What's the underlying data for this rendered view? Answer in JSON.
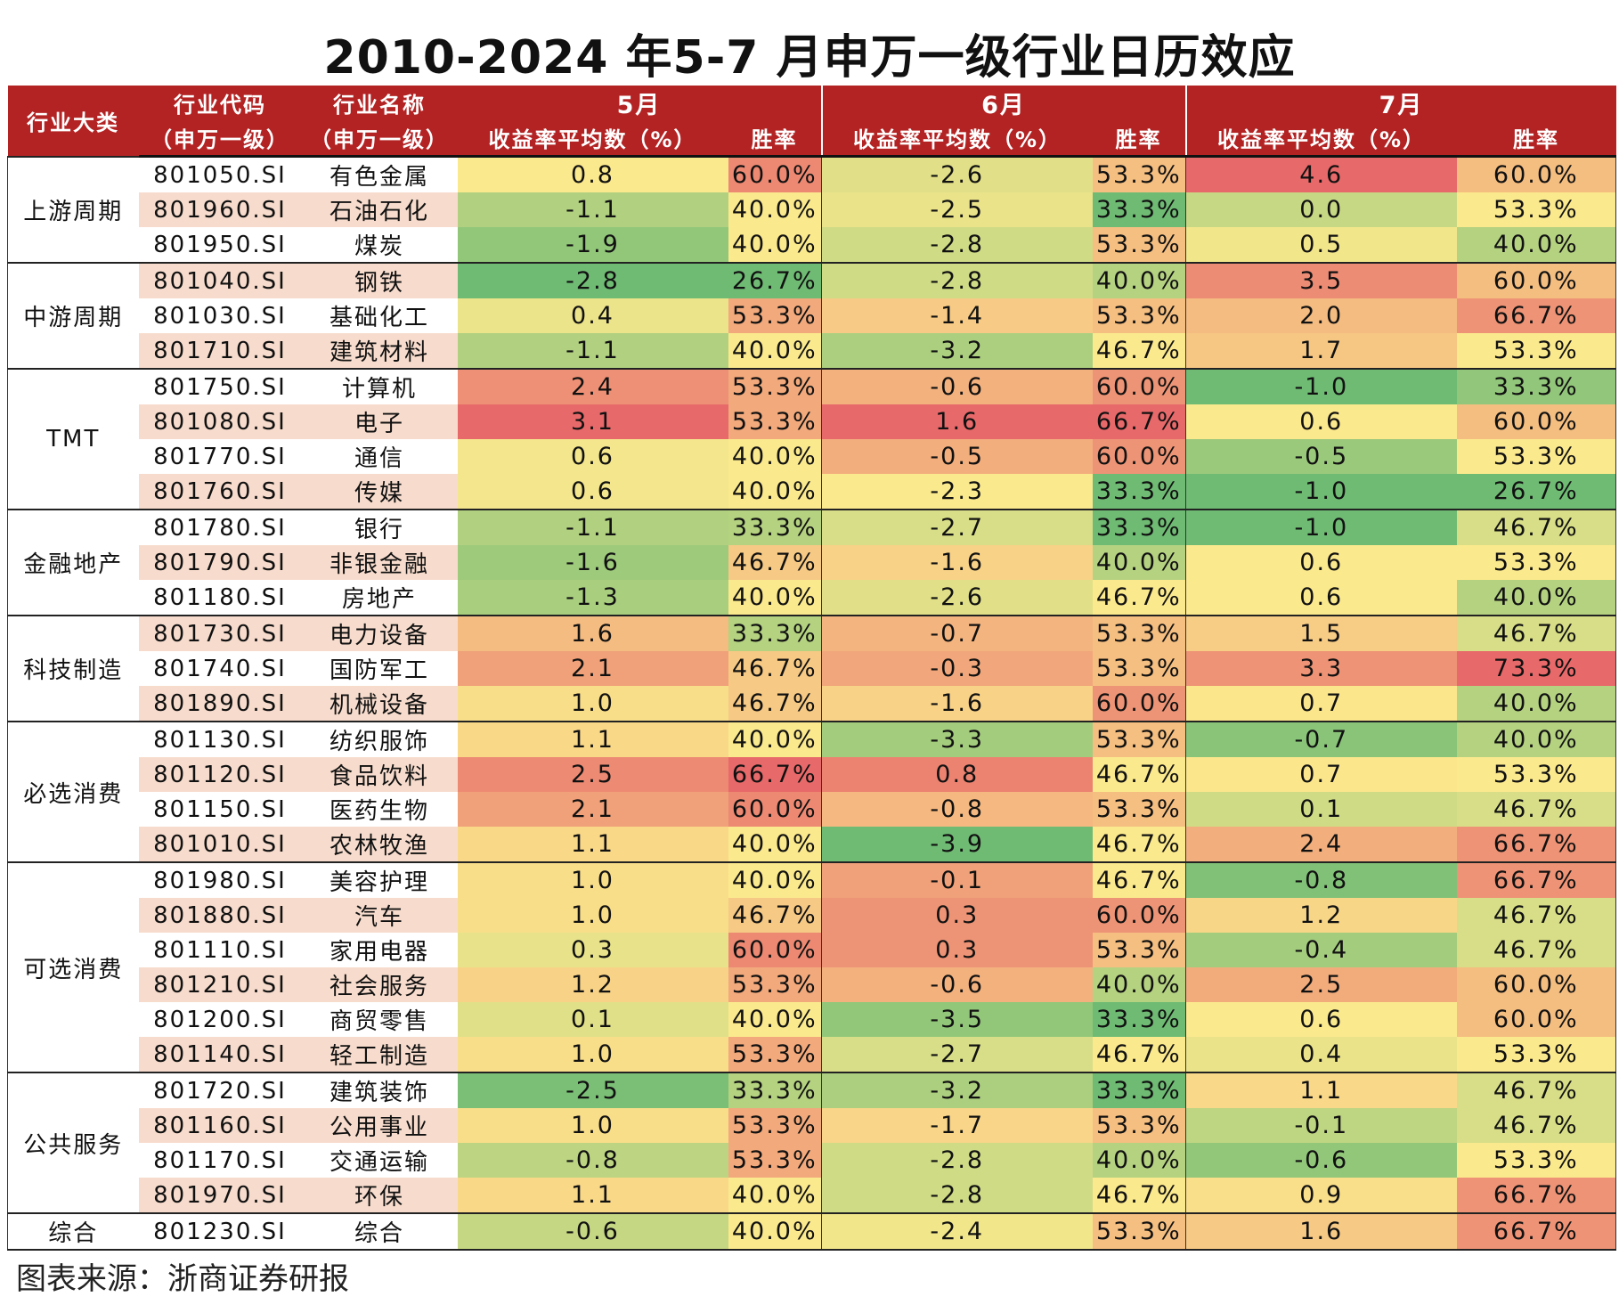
{
  "title": "2010-2024 年5-7 月申万一级行业日历效应",
  "source": "图表来源：浙商证券研报",
  "header": {
    "category": "行业大类",
    "code_l1": "行业代码",
    "code_l2": "（申万一级）",
    "name_l1": "行业名称",
    "name_l2": "（申万一级）",
    "months": [
      "5月",
      "6月",
      "7月"
    ],
    "return_label": "收益率平均数（%）",
    "winrate_label": "胜率"
  },
  "colors": {
    "header_bg": "#b32324",
    "alt_row_bg": "#f7dccd",
    "scale_low": "#6fbb74",
    "scale_mid": "#fbe98d",
    "scale_high": "#e8696a"
  },
  "chart_data": {
    "type": "table",
    "groups": [
      {
        "category": "上游周期",
        "rows": [
          {
            "code": "801050.SI",
            "name": "有色金属",
            "may_ret": "0.8",
            "may_win": "60.0%",
            "jun_ret": "-2.6",
            "jun_win": "53.3%",
            "jul_ret": "4.6",
            "jul_win": "60.0%"
          },
          {
            "code": "801960.SI",
            "name": "石油石化",
            "may_ret": "-1.1",
            "may_win": "40.0%",
            "jun_ret": "-2.5",
            "jun_win": "33.3%",
            "jul_ret": "0.0",
            "jul_win": "53.3%"
          },
          {
            "code": "801950.SI",
            "name": "煤炭",
            "may_ret": "-1.9",
            "may_win": "40.0%",
            "jun_ret": "-2.8",
            "jun_win": "53.3%",
            "jul_ret": "0.5",
            "jul_win": "40.0%"
          }
        ]
      },
      {
        "category": "中游周期",
        "rows": [
          {
            "code": "801040.SI",
            "name": "钢铁",
            "may_ret": "-2.8",
            "may_win": "26.7%",
            "jun_ret": "-2.8",
            "jun_win": "40.0%",
            "jul_ret": "3.5",
            "jul_win": "60.0%"
          },
          {
            "code": "801030.SI",
            "name": "基础化工",
            "may_ret": "0.4",
            "may_win": "53.3%",
            "jun_ret": "-1.4",
            "jun_win": "53.3%",
            "jul_ret": "2.0",
            "jul_win": "66.7%"
          },
          {
            "code": "801710.SI",
            "name": "建筑材料",
            "may_ret": "-1.1",
            "may_win": "40.0%",
            "jun_ret": "-3.2",
            "jun_win": "46.7%",
            "jul_ret": "1.7",
            "jul_win": "53.3%"
          }
        ]
      },
      {
        "category": "TMT",
        "rows": [
          {
            "code": "801750.SI",
            "name": "计算机",
            "may_ret": "2.4",
            "may_win": "53.3%",
            "jun_ret": "-0.6",
            "jun_win": "60.0%",
            "jul_ret": "-1.0",
            "jul_win": "33.3%"
          },
          {
            "code": "801080.SI",
            "name": "电子",
            "may_ret": "3.1",
            "may_win": "53.3%",
            "jun_ret": "1.6",
            "jun_win": "66.7%",
            "jul_ret": "0.6",
            "jul_win": "60.0%"
          },
          {
            "code": "801770.SI",
            "name": "通信",
            "may_ret": "0.6",
            "may_win": "40.0%",
            "jun_ret": "-0.5",
            "jun_win": "60.0%",
            "jul_ret": "-0.5",
            "jul_win": "53.3%"
          },
          {
            "code": "801760.SI",
            "name": "传媒",
            "may_ret": "0.6",
            "may_win": "40.0%",
            "jun_ret": "-2.3",
            "jun_win": "33.3%",
            "jul_ret": "-1.0",
            "jul_win": "26.7%"
          }
        ]
      },
      {
        "category": "金融地产",
        "rows": [
          {
            "code": "801780.SI",
            "name": "银行",
            "may_ret": "-1.1",
            "may_win": "33.3%",
            "jun_ret": "-2.7",
            "jun_win": "33.3%",
            "jul_ret": "-1.0",
            "jul_win": "46.7%"
          },
          {
            "code": "801790.SI",
            "name": "非银金融",
            "may_ret": "-1.6",
            "may_win": "46.7%",
            "jun_ret": "-1.6",
            "jun_win": "40.0%",
            "jul_ret": "0.6",
            "jul_win": "53.3%"
          },
          {
            "code": "801180.SI",
            "name": "房地产",
            "may_ret": "-1.3",
            "may_win": "40.0%",
            "jun_ret": "-2.6",
            "jun_win": "46.7%",
            "jul_ret": "0.6",
            "jul_win": "40.0%"
          }
        ]
      },
      {
        "category": "科技制造",
        "rows": [
          {
            "code": "801730.SI",
            "name": "电力设备",
            "may_ret": "1.6",
            "may_win": "33.3%",
            "jun_ret": "-0.7",
            "jun_win": "53.3%",
            "jul_ret": "1.5",
            "jul_win": "46.7%"
          },
          {
            "code": "801740.SI",
            "name": "国防军工",
            "may_ret": "2.1",
            "may_win": "46.7%",
            "jun_ret": "-0.3",
            "jun_win": "53.3%",
            "jul_ret": "3.3",
            "jul_win": "73.3%"
          },
          {
            "code": "801890.SI",
            "name": "机械设备",
            "may_ret": "1.0",
            "may_win": "46.7%",
            "jun_ret": "-1.6",
            "jun_win": "60.0%",
            "jul_ret": "0.7",
            "jul_win": "40.0%"
          }
        ]
      },
      {
        "category": "必选消费",
        "rows": [
          {
            "code": "801130.SI",
            "name": "纺织服饰",
            "may_ret": "1.1",
            "may_win": "40.0%",
            "jun_ret": "-3.3",
            "jun_win": "53.3%",
            "jul_ret": "-0.7",
            "jul_win": "40.0%"
          },
          {
            "code": "801120.SI",
            "name": "食品饮料",
            "may_ret": "2.5",
            "may_win": "66.7%",
            "jun_ret": "0.8",
            "jun_win": "46.7%",
            "jul_ret": "0.7",
            "jul_win": "53.3%"
          },
          {
            "code": "801150.SI",
            "name": "医药生物",
            "may_ret": "2.1",
            "may_win": "60.0%",
            "jun_ret": "-0.8",
            "jun_win": "53.3%",
            "jul_ret": "0.1",
            "jul_win": "46.7%"
          },
          {
            "code": "801010.SI",
            "name": "农林牧渔",
            "may_ret": "1.1",
            "may_win": "40.0%",
            "jun_ret": "-3.9",
            "jun_win": "46.7%",
            "jul_ret": "2.4",
            "jul_win": "66.7%"
          }
        ]
      },
      {
        "category": "可选消费",
        "rows": [
          {
            "code": "801980.SI",
            "name": "美容护理",
            "may_ret": "1.0",
            "may_win": "40.0%",
            "jun_ret": "-0.1",
            "jun_win": "46.7%",
            "jul_ret": "-0.8",
            "jul_win": "66.7%"
          },
          {
            "code": "801880.SI",
            "name": "汽车",
            "may_ret": "1.0",
            "may_win": "46.7%",
            "jun_ret": "0.3",
            "jun_win": "60.0%",
            "jul_ret": "1.2",
            "jul_win": "46.7%"
          },
          {
            "code": "801110.SI",
            "name": "家用电器",
            "may_ret": "0.3",
            "may_win": "60.0%",
            "jun_ret": "0.3",
            "jun_win": "53.3%",
            "jul_ret": "-0.4",
            "jul_win": "46.7%"
          },
          {
            "code": "801210.SI",
            "name": "社会服务",
            "may_ret": "1.2",
            "may_win": "53.3%",
            "jun_ret": "-0.6",
            "jun_win": "40.0%",
            "jul_ret": "2.5",
            "jul_win": "60.0%"
          },
          {
            "code": "801200.SI",
            "name": "商贸零售",
            "may_ret": "0.1",
            "may_win": "40.0%",
            "jun_ret": "-3.5",
            "jun_win": "33.3%",
            "jul_ret": "0.6",
            "jul_win": "60.0%"
          },
          {
            "code": "801140.SI",
            "name": "轻工制造",
            "may_ret": "1.0",
            "may_win": "53.3%",
            "jun_ret": "-2.7",
            "jun_win": "46.7%",
            "jul_ret": "0.4",
            "jul_win": "53.3%"
          }
        ]
      },
      {
        "category": "公共服务",
        "rows": [
          {
            "code": "801720.SI",
            "name": "建筑装饰",
            "may_ret": "-2.5",
            "may_win": "33.3%",
            "jun_ret": "-3.2",
            "jun_win": "33.3%",
            "jul_ret": "1.1",
            "jul_win": "46.7%"
          },
          {
            "code": "801160.SI",
            "name": "公用事业",
            "may_ret": "1.0",
            "may_win": "53.3%",
            "jun_ret": "-1.7",
            "jun_win": "53.3%",
            "jul_ret": "-0.1",
            "jul_win": "46.7%"
          },
          {
            "code": "801170.SI",
            "name": "交通运输",
            "may_ret": "-0.8",
            "may_win": "53.3%",
            "jun_ret": "-2.8",
            "jun_win": "40.0%",
            "jul_ret": "-0.6",
            "jul_win": "53.3%"
          },
          {
            "code": "801970.SI",
            "name": "环保",
            "may_ret": "1.1",
            "may_win": "40.0%",
            "jun_ret": "-2.8",
            "jun_win": "46.7%",
            "jul_ret": "0.9",
            "jul_win": "66.7%"
          }
        ]
      },
      {
        "category": "综合",
        "rows": [
          {
            "code": "801230.SI",
            "name": "综合",
            "may_ret": "-0.6",
            "may_win": "40.0%",
            "jun_ret": "-2.4",
            "jun_win": "53.3%",
            "jul_ret": "1.6",
            "jul_win": "66.7%"
          }
        ]
      }
    ]
  }
}
